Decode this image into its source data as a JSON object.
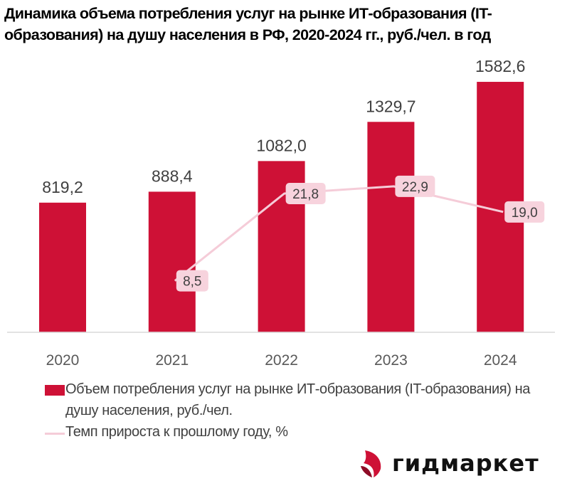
{
  "chart_data": {
    "type": "bar",
    "title": "Динамика объема потребления услуг на рынке ИТ-образования (IT-образования) на душу населения в РФ, 2020-2024 гг., руб./чел. в год",
    "categories": [
      "2020",
      "2021",
      "2022",
      "2023",
      "2024"
    ],
    "series": [
      {
        "name": "Объем потребления услуг на рынке ИТ-образования (IT-образования) на душу населения, руб./чел.",
        "type": "bar",
        "values": [
          819.2,
          888.4,
          1082.0,
          1329.7,
          1582.6
        ],
        "labels": [
          "819,2",
          "888,4",
          "1082,0",
          "1329,7",
          "1582,6"
        ],
        "color": "#CE1136"
      },
      {
        "name": "Темп прироста к прошлому году, %",
        "type": "line",
        "values": [
          null,
          8.5,
          21.8,
          22.9,
          19.0
        ],
        "labels": [
          "",
          "8,5",
          "21,8",
          "22,9",
          "19,0"
        ],
        "color": "#F5CCD8"
      }
    ],
    "xlabel": "",
    "ylabel": "",
    "ylim": [
      0,
      2100
    ],
    "y2lim": [
      -0.5,
      40
    ],
    "grid": false,
    "legend_position": "bottom"
  },
  "legend": {
    "bar_label": "Объем потребления услуг на рынке ИТ-образования (IT-образования) на душу населения, руб./чел.",
    "line_label": "Темп прироста к прошлому году, %"
  },
  "brand": {
    "name": "гидмаркет",
    "icon": "gidmarket-logo-icon",
    "accent": "#CE1136"
  },
  "colors": {
    "bar": "#CE1136",
    "line": "#F5CCD8",
    "label_bg": "#F7D3DD",
    "text": "#404040",
    "axis": "#D9D9D9"
  }
}
